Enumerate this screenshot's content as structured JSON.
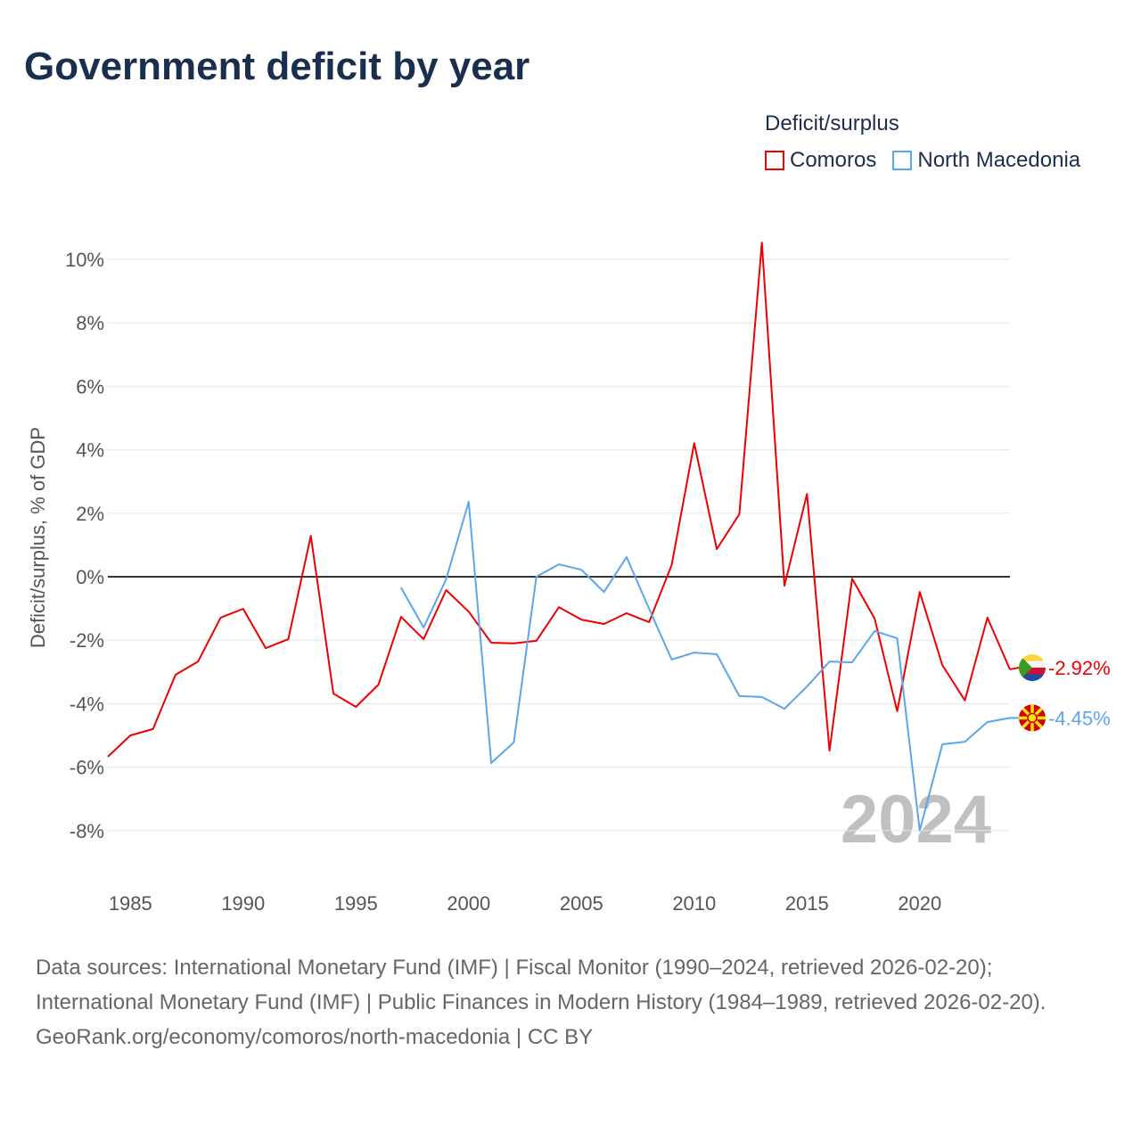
{
  "title": "Government deficit by year",
  "footer": {
    "sources": "Data sources: International Monetary Fund (IMF) | Fiscal Monitor (1990–2024, retrieved 2026-02-20); International Monetary Fund (IMF) | Public Finances in Modern History (1984–1989, retrieved 2026-02-20).",
    "credit": "GeoRank.org/economy/comoros/north-macedonia | CC BY"
  },
  "chart_data": {
    "type": "line",
    "title": "Government deficit by year",
    "ylabel": "Deficit/surplus, % of GDP",
    "xlabel": "",
    "legend_title": "Deficit/surplus",
    "legend_position": "top-right",
    "year_watermark": "2024",
    "xlim": [
      1984,
      2024
    ],
    "ylim": [
      -9.5,
      10.5
    ],
    "x_ticks": [
      1985,
      1990,
      1995,
      2000,
      2005,
      2010,
      2015,
      2020
    ],
    "y_ticks": [
      -8,
      -6,
      -4,
      -2,
      0,
      2,
      4,
      6,
      8,
      10
    ],
    "y_tick_labels": [
      "-8%",
      "-6%",
      "-4%",
      "-2%",
      "0%",
      "2%",
      "4%",
      "6%",
      "8%",
      "10%"
    ],
    "grid": true,
    "series": [
      {
        "name": "Comoros",
        "color": "#ee0000",
        "end_label": "-2.92%",
        "start_year": 1984,
        "values": [
          -5.67,
          -5.0,
          -4.8,
          -3.09,
          -2.67,
          -1.29,
          -1.01,
          -2.25,
          -1.97,
          1.29,
          -3.68,
          -4.1,
          -3.4,
          -1.26,
          -1.97,
          -0.42,
          -1.1,
          -2.08,
          -2.1,
          -2.02,
          -0.96,
          -1.35,
          -1.49,
          -1.15,
          -1.43,
          0.37,
          4.21,
          0.87,
          1.97,
          10.53,
          -0.28,
          2.61,
          -5.48,
          -0.06,
          -1.32,
          -4.24,
          -0.48,
          -2.78,
          -3.9,
          -1.29,
          -2.92
        ]
      },
      {
        "name": "North Macedonia",
        "color": "#5aa6e8",
        "end_label": "-4.45%",
        "start_year": 1997,
        "values": [
          -0.34,
          -1.6,
          -0.08,
          2.36,
          -5.87,
          -5.22,
          0.0,
          0.39,
          0.22,
          -0.48,
          0.62,
          -1.01,
          -2.61,
          -2.39,
          -2.44,
          -3.76,
          -3.79,
          -4.16,
          -3.46,
          -2.67,
          -2.7,
          -1.71,
          -1.94,
          -8.0,
          -5.28,
          -5.2,
          -4.58,
          -4.45
        ]
      }
    ]
  }
}
